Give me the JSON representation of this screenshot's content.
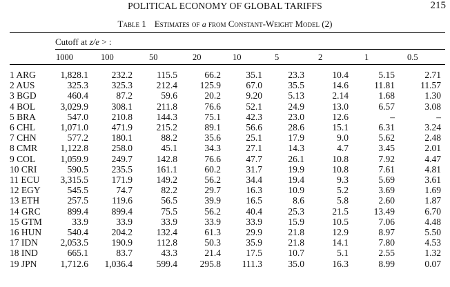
{
  "running_head": {
    "title": "POLITICAL ECONOMY OF GLOBAL TARIFFS",
    "page_number": "215"
  },
  "caption": {
    "table_label": "Table 1",
    "title_before": "Estimates of ",
    "title_symbol": "a",
    "title_after": " from Constant-Weight Model (2)"
  },
  "cutoff": {
    "prefix": "Cutoff at ",
    "expr": "z/e",
    "suffix": " > :"
  },
  "columns": [
    "1000",
    "100",
    "50",
    "20",
    "10",
    "5",
    "2",
    "1",
    "0.5"
  ],
  "rows": [
    {
      "label": "1 ARG",
      "values": [
        "1,828.1",
        "232.2",
        "115.5",
        "66.2",
        "35.1",
        "23.3",
        "10.4",
        "5.15",
        "2.71"
      ]
    },
    {
      "label": "2 AUS",
      "values": [
        "325.3",
        "325.3",
        "212.4",
        "125.9",
        "67.0",
        "35.5",
        "14.6",
        "11.81",
        "11.57"
      ]
    },
    {
      "label": "3 BGD",
      "values": [
        "460.4",
        "87.2",
        "59.6",
        "20.2",
        "9.20",
        "5.13",
        "2.14",
        "1.68",
        "1.30"
      ]
    },
    {
      "label": "4 BOL",
      "values": [
        "3,029.9",
        "308.1",
        "211.8",
        "76.6",
        "52.1",
        "24.9",
        "13.0",
        "6.57",
        "3.08"
      ]
    },
    {
      "label": "5 BRA",
      "values": [
        "547.0",
        "210.8",
        "144.3",
        "75.1",
        "42.3",
        "23.0",
        "12.6",
        "–",
        "–"
      ]
    },
    {
      "label": "6 CHL",
      "values": [
        "1,071.0",
        "471.9",
        "215.2",
        "89.1",
        "56.6",
        "28.6",
        "15.1",
        "6.31",
        "3.24"
      ]
    },
    {
      "label": "7 CHN",
      "values": [
        "577.2",
        "180.1",
        "88.2",
        "35.6",
        "25.1",
        "17.9",
        "9.0",
        "5.62",
        "2.48"
      ]
    },
    {
      "label": "8 CMR",
      "values": [
        "1,122.8",
        "258.0",
        "45.1",
        "34.3",
        "27.1",
        "14.3",
        "4.7",
        "3.45",
        "2.01"
      ]
    },
    {
      "label": "9 COL",
      "values": [
        "1,059.9",
        "249.7",
        "142.8",
        "76.6",
        "47.7",
        "26.1",
        "10.8",
        "7.92",
        "4.47"
      ]
    },
    {
      "label": "10 CRI",
      "values": [
        "590.5",
        "235.5",
        "161.1",
        "60.2",
        "31.7",
        "19.9",
        "10.8",
        "7.61",
        "4.81"
      ]
    },
    {
      "label": "11 ECU",
      "values": [
        "3,315.5",
        "171.9",
        "149.2",
        "56.2",
        "34.4",
        "19.4",
        "9.3",
        "5.69",
        "3.61"
      ]
    },
    {
      "label": "12 EGY",
      "values": [
        "545.5",
        "74.7",
        "82.2",
        "29.7",
        "16.3",
        "10.9",
        "5.2",
        "3.69",
        "1.69"
      ]
    },
    {
      "label": "13 ETH",
      "values": [
        "257.5",
        "119.6",
        "56.5",
        "39.9",
        "16.5",
        "8.6",
        "5.8",
        "2.60",
        "1.87"
      ]
    },
    {
      "label": "14 GRC",
      "values": [
        "899.4",
        "899.4",
        "75.5",
        "56.2",
        "40.4",
        "25.3",
        "21.5",
        "13.49",
        "6.70"
      ]
    },
    {
      "label": "15 GTM",
      "values": [
        "33.9",
        "33.9",
        "33.9",
        "33.9",
        "33.9",
        "15.9",
        "10.5",
        "7.06",
        "4.48"
      ]
    },
    {
      "label": "16 HUN",
      "values": [
        "540.4",
        "204.2",
        "132.4",
        "61.3",
        "29.9",
        "21.8",
        "12.9",
        "8.97",
        "5.50"
      ]
    },
    {
      "label": "17 IDN",
      "values": [
        "2,053.5",
        "190.9",
        "112.8",
        "50.3",
        "35.9",
        "21.8",
        "14.1",
        "7.80",
        "4.53"
      ]
    },
    {
      "label": "18 IND",
      "values": [
        "665.1",
        "83.7",
        "43.3",
        "21.4",
        "17.5",
        "10.7",
        "5.1",
        "2.55",
        "1.32"
      ]
    },
    {
      "label": "19 JPN",
      "values": [
        "1,712.6",
        "1,036.4",
        "599.4",
        "295.8",
        "111.3",
        "35.0",
        "16.3",
        "8.99",
        "0.07"
      ]
    }
  ]
}
